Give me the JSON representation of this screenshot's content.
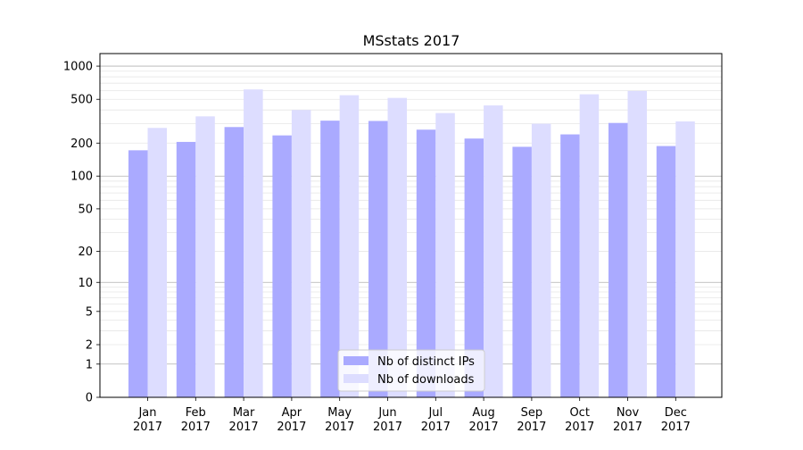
{
  "chart_data": {
    "type": "bar",
    "title": "MSstats 2017",
    "xlabel": "",
    "ylabel": "",
    "yscale": "log1p",
    "yticks": [
      "0",
      "1",
      "2",
      "5",
      "10",
      "20",
      "50",
      "100",
      "200",
      "500",
      "1000"
    ],
    "ylim": [
      0,
      1300
    ],
    "grid": true,
    "legend_position": "bottom-center",
    "categories": [
      [
        "Jan",
        "2017"
      ],
      [
        "Feb",
        "2017"
      ],
      [
        "Mar",
        "2017"
      ],
      [
        "Apr",
        "2017"
      ],
      [
        "May",
        "2017"
      ],
      [
        "Jun",
        "2017"
      ],
      [
        "Jul",
        "2017"
      ],
      [
        "Aug",
        "2017"
      ],
      [
        "Sep",
        "2017"
      ],
      [
        "Oct",
        "2017"
      ],
      [
        "Nov",
        "2017"
      ],
      [
        "Dec",
        "2017"
      ]
    ],
    "series": [
      {
        "name": "Nb of distinct IPs",
        "color": "#aaaaff",
        "values": [
          172,
          205,
          280,
          235,
          320,
          318,
          265,
          220,
          185,
          240,
          305,
          188
        ]
      },
      {
        "name": "Nb of downloads",
        "color": "#ddddff",
        "values": [
          275,
          350,
          615,
          400,
          545,
          515,
          375,
          440,
          300,
          555,
          595,
          315
        ]
      }
    ]
  }
}
